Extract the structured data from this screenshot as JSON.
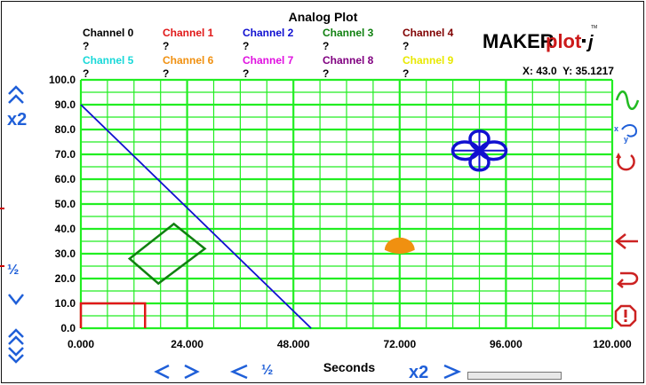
{
  "title": "Analog Plot",
  "legend": [
    {
      "label": "Channel 0",
      "value": "?",
      "color": "#000000"
    },
    {
      "label": "Channel 1",
      "value": "?",
      "color": "#e01818"
    },
    {
      "label": "Channel 2",
      "value": "?",
      "color": "#1010d0"
    },
    {
      "label": "Channel 3",
      "value": "?",
      "color": "#108010"
    },
    {
      "label": "Channel 4",
      "value": "?",
      "color": "#800000"
    },
    {
      "label": "Channel 5",
      "value": "?",
      "color": "#18d8d8"
    },
    {
      "label": "Channel 6",
      "value": "?",
      "color": "#f09010"
    },
    {
      "label": "Channel 7",
      "value": "?",
      "color": "#e010e0"
    },
    {
      "label": "Channel 8",
      "value": "?",
      "color": "#800080"
    },
    {
      "label": "Channel 9",
      "value": "?",
      "color": "#e8e800"
    }
  ],
  "coords": {
    "x": "X: 43.0",
    "y": "Y: 35.1217"
  },
  "logo": {
    "text_a": "MAKER",
    "text_b": "plot",
    "text_c": "j",
    "tm": "TM"
  },
  "controls": {
    "zoom_x2_left": "x2",
    "zoom_half_left": "½",
    "zoom_half_bottom": "½",
    "zoom_x2_bottom": "x2"
  },
  "colors": {
    "grid": "#22ee22",
    "axis_blue": "#1f5fd8",
    "icon_red": "#cc2222",
    "icon_green": "#22bb22"
  },
  "chart_data": {
    "type": "line",
    "xlabel": "Seconds",
    "ylabel": "",
    "xlim": [
      0,
      120
    ],
    "ylim": [
      0,
      100
    ],
    "x_ticks": [
      "0.000",
      "24.000",
      "48.000",
      "72.000",
      "96.000",
      "120.000"
    ],
    "y_ticks": [
      "0.0",
      "10.0",
      "20.0",
      "30.0",
      "40.0",
      "50.0",
      "60.0",
      "70.0",
      "80.0",
      "90.0",
      "100.0"
    ],
    "grid": true,
    "series": [
      {
        "color": "#1010d0",
        "points": [
          [
            0,
            90
          ],
          [
            52,
            0
          ]
        ]
      }
    ],
    "shapes": [
      {
        "kind": "rect",
        "color": "#e01818",
        "points": [
          [
            0,
            0
          ],
          [
            0,
            10
          ],
          [
            14.5,
            10
          ],
          [
            14.5,
            0
          ]
        ]
      },
      {
        "kind": "diamond",
        "color": "#108010",
        "points": [
          [
            11,
            28
          ],
          [
            21,
            42
          ],
          [
            28,
            32
          ],
          [
            17.5,
            18
          ]
        ]
      },
      {
        "kind": "half-disc",
        "color": "#f09010",
        "center": [
          72,
          33
        ],
        "radius_x": 3.4,
        "radius_y": 5
      },
      {
        "kind": "clover",
        "color": "#1010d0",
        "center": [
          90,
          71.5
        ]
      }
    ]
  }
}
